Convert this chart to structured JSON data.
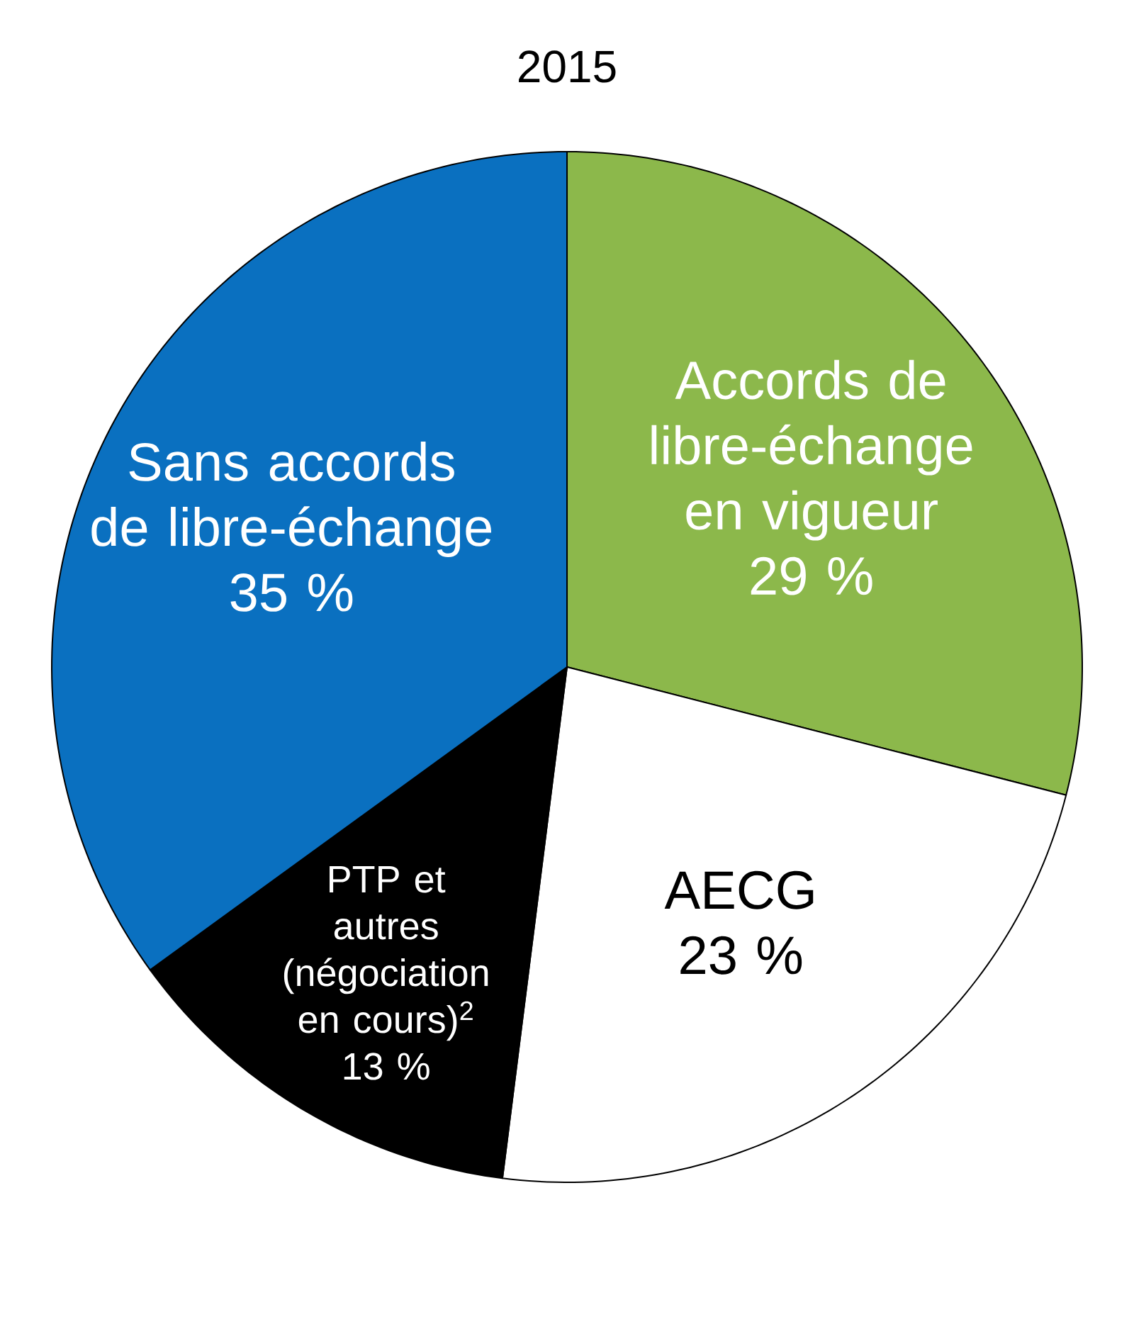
{
  "chart_data": {
    "type": "pie",
    "title": "2015",
    "categories": [
      "Accords de libre-échange en vigueur",
      "AECG",
      "PTP et autres (négociation en cours)$^{2}$",
      "Sans accords de libre-échange"
    ],
    "values": [
      29,
      23,
      13,
      35
    ],
    "colors": [
      "#8cb84b",
      "#ffffff",
      "#000000",
      "#0a70c0"
    ],
    "value_labels": [
      "29 %",
      "23 %",
      "13 %",
      "35 %"
    ]
  }
}
